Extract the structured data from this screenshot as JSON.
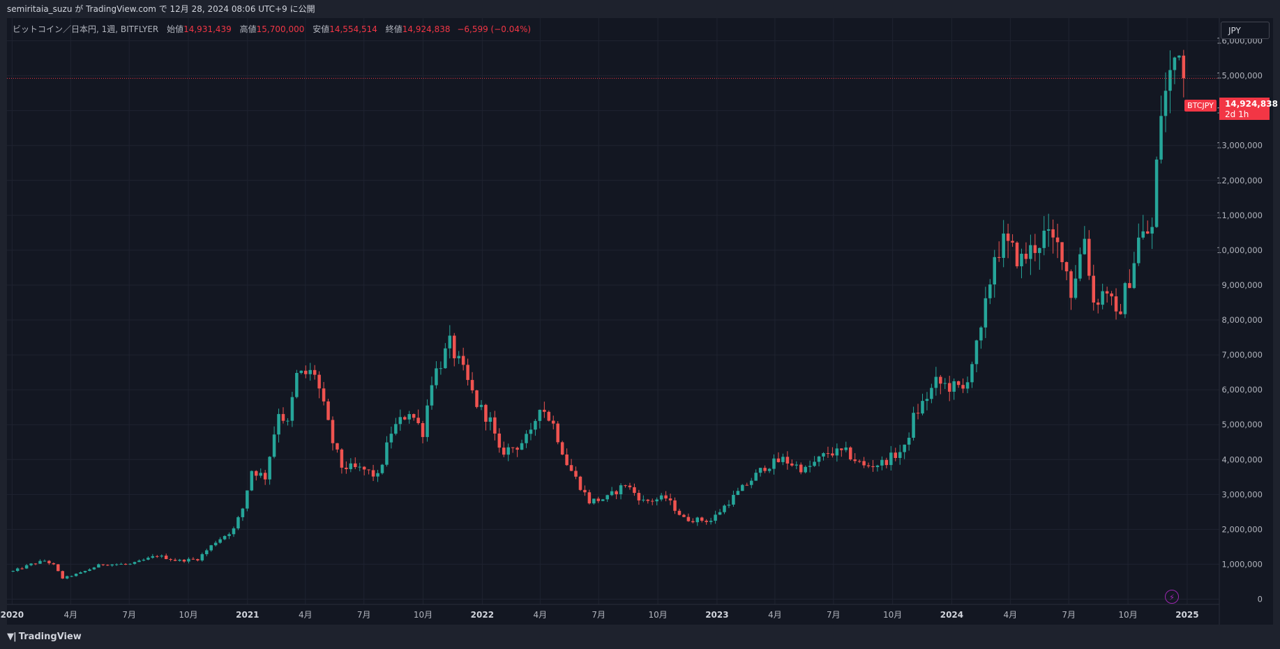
{
  "header": {
    "publish_line": "semiritaia_suzu が TradingView.com で 12月 28, 2024 08:06 UTC+9 に公開"
  },
  "legend": {
    "symbol": "ビットコイン／日本円, 1週, BITFLYER",
    "open_label": "始値",
    "open": "14,931,439",
    "high_label": "高値",
    "high": "15,700,000",
    "low_label": "安値",
    "low": "14,554,514",
    "close_label": "終値",
    "close": "14,924,838",
    "change": "−6,599 (−0.04%)"
  },
  "currency_button": "JPY",
  "last_price": {
    "ticker": "BTCJPY",
    "price": "14,924,838",
    "countdown": "2d 1h"
  },
  "footer": {
    "brand": "TradingView",
    "logo_icon": "tradingview-logo-icon"
  },
  "colors": {
    "up": "#26a69a",
    "down": "#ef5350",
    "background": "#131722",
    "grid": "#1f2330",
    "last_price": "#f23645"
  },
  "chart_data": {
    "type": "candlestick",
    "interval": "1W",
    "y_axis_ticks": [
      {
        "value": 0,
        "label": "0"
      },
      {
        "value": 1000000,
        "label": "1,000,000"
      },
      {
        "value": 2000000,
        "label": "2,000,000"
      },
      {
        "value": 3000000,
        "label": "3,000,000"
      },
      {
        "value": 4000000,
        "label": "4,000,000"
      },
      {
        "value": 5000000,
        "label": "5,000,000"
      },
      {
        "value": 6000000,
        "label": "6,000,000"
      },
      {
        "value": 7000000,
        "label": "7,000,000"
      },
      {
        "value": 8000000,
        "label": "8,000,000"
      },
      {
        "value": 9000000,
        "label": "9,000,000"
      },
      {
        "value": 10000000,
        "label": "10,000,000"
      },
      {
        "value": 11000000,
        "label": "11,000,000"
      },
      {
        "value": 12000000,
        "label": "12,000,000"
      },
      {
        "value": 13000000,
        "label": "13,000,000"
      },
      {
        "value": 14000000,
        "label": "14,000,000"
      },
      {
        "value": 15000000,
        "label": "15,000,000"
      },
      {
        "value": 16000000,
        "label": "16,000,000"
      }
    ],
    "x_axis_ticks": [
      {
        "date": "2020-01-01",
        "label": "2020",
        "major": true
      },
      {
        "date": "2020-04-01",
        "label": "4月"
      },
      {
        "date": "2020-07-01",
        "label": "7月"
      },
      {
        "date": "2020-10-01",
        "label": "10月"
      },
      {
        "date": "2021-01-01",
        "label": "2021",
        "major": true
      },
      {
        "date": "2021-04-01",
        "label": "4月"
      },
      {
        "date": "2021-07-01",
        "label": "7月"
      },
      {
        "date": "2021-10-01",
        "label": "10月"
      },
      {
        "date": "2022-01-01",
        "label": "2022",
        "major": true
      },
      {
        "date": "2022-04-01",
        "label": "4月"
      },
      {
        "date": "2022-07-01",
        "label": "7月"
      },
      {
        "date": "2022-10-01",
        "label": "10月"
      },
      {
        "date": "2023-01-01",
        "label": "2023",
        "major": true
      },
      {
        "date": "2023-04-01",
        "label": "4月"
      },
      {
        "date": "2023-07-01",
        "label": "7月"
      },
      {
        "date": "2023-10-01",
        "label": "10月"
      },
      {
        "date": "2024-01-01",
        "label": "2024",
        "major": true
      },
      {
        "date": "2024-04-01",
        "label": "4月"
      },
      {
        "date": "2024-07-01",
        "label": "7月"
      },
      {
        "date": "2024-10-01",
        "label": "10月"
      },
      {
        "date": "2025-01-01",
        "label": "2025",
        "major": true
      }
    ],
    "x_range": [
      "2019-12-24",
      "2025-02-20"
    ],
    "y_range": [
      -150000,
      16650000
    ],
    "last_price_value": 14924838,
    "monthly_close_path": [
      [
        "2019-12-30",
        800000
      ],
      [
        "2020-01-27",
        1000000
      ],
      [
        "2020-02-17",
        1100000
      ],
      [
        "2020-03-01",
        1000000
      ],
      [
        "2020-03-16",
        600000
      ],
      [
        "2020-04-13",
        750000
      ],
      [
        "2020-05-15",
        1000000
      ],
      [
        "2020-07-01",
        1000000
      ],
      [
        "2020-08-10",
        1250000
      ],
      [
        "2020-09-10",
        1100000
      ],
      [
        "2020-10-12",
        1150000
      ],
      [
        "2020-11-09",
        1650000
      ],
      [
        "2020-12-07",
        2000000
      ],
      [
        "2020-12-21",
        2600000
      ],
      [
        "2021-01-04",
        3700000
      ],
      [
        "2021-01-25",
        3500000
      ],
      [
        "2021-02-15",
        5400000
      ],
      [
        "2021-03-01",
        5000000
      ],
      [
        "2021-03-15",
        6400000
      ],
      [
        "2021-04-12",
        6500000
      ],
      [
        "2021-05-10",
        4500000
      ],
      [
        "2021-05-24",
        3800000
      ],
      [
        "2021-06-28",
        3700000
      ],
      [
        "2021-07-19",
        3500000
      ],
      [
        "2021-08-09",
        4800000
      ],
      [
        "2021-09-06",
        5400000
      ],
      [
        "2021-09-27",
        4800000
      ],
      [
        "2021-10-11",
        6300000
      ],
      [
        "2021-11-08",
        7300000
      ],
      [
        "2021-11-29",
        6500000
      ],
      [
        "2021-12-20",
        5600000
      ],
      [
        "2022-01-10",
        5100000
      ],
      [
        "2022-01-24",
        4200000
      ],
      [
        "2022-02-21",
        4400000
      ],
      [
        "2022-03-14",
        4700000
      ],
      [
        "2022-03-28",
        5600000
      ],
      [
        "2022-04-18",
        5000000
      ],
      [
        "2022-05-09",
        3900000
      ],
      [
        "2022-06-13",
        2800000
      ],
      [
        "2022-07-11",
        2900000
      ],
      [
        "2022-08-08",
        3300000
      ],
      [
        "2022-09-05",
        2800000
      ],
      [
        "2022-10-10",
        2900000
      ],
      [
        "2022-11-07",
        2300000
      ],
      [
        "2022-12-19",
        2250000
      ],
      [
        "2023-01-16",
        2800000
      ],
      [
        "2023-02-13",
        3300000
      ],
      [
        "2023-03-13",
        3800000
      ],
      [
        "2023-04-10",
        4000000
      ],
      [
        "2023-05-15",
        3700000
      ],
      [
        "2023-06-19",
        4200000
      ],
      [
        "2023-07-17",
        4200000
      ],
      [
        "2023-08-14",
        3800000
      ],
      [
        "2023-09-11",
        3900000
      ],
      [
        "2023-10-16",
        4300000
      ],
      [
        "2023-10-30",
        5200000
      ],
      [
        "2023-12-04",
        6200000
      ],
      [
        "2024-01-15",
        6000000
      ],
      [
        "2024-02-12",
        7600000
      ],
      [
        "2024-03-04",
        9900000
      ],
      [
        "2024-03-18",
        10200000
      ],
      [
        "2024-04-15",
        9700000
      ],
      [
        "2024-05-20",
        10400000
      ],
      [
        "2024-06-17",
        10000000
      ],
      [
        "2024-07-01",
        8800000
      ],
      [
        "2024-07-22",
        10400000
      ],
      [
        "2024-08-05",
        8500000
      ],
      [
        "2024-08-26",
        8900000
      ],
      [
        "2024-09-09",
        8000000
      ],
      [
        "2024-09-30",
        9200000
      ],
      [
        "2024-10-14",
        10300000
      ],
      [
        "2024-11-04",
        10600000
      ],
      [
        "2024-11-11",
        12400000
      ],
      [
        "2024-11-18",
        14000000
      ],
      [
        "2024-12-02",
        15000000
      ],
      [
        "2024-12-16",
        16000000
      ],
      [
        "2024-12-23",
        14924838
      ]
    ]
  }
}
